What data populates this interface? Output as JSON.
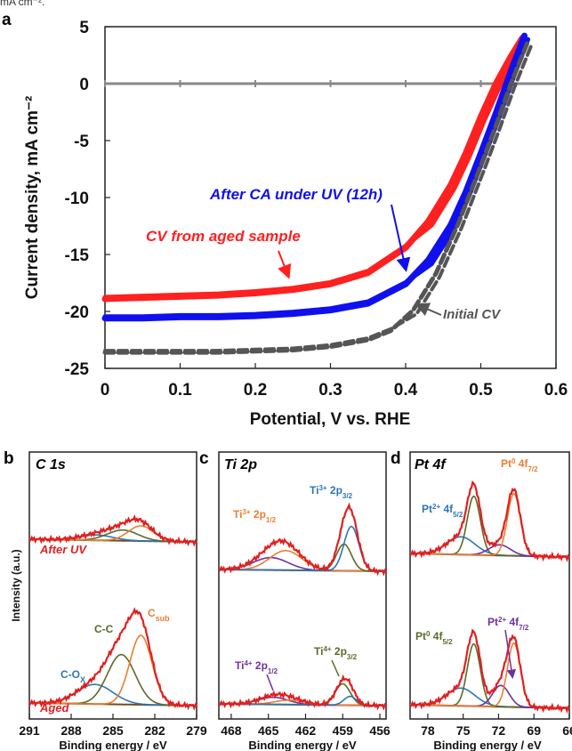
{
  "header_fragment": "mA cm⁻².",
  "chart_data": [
    {
      "type": "line",
      "panel": "a",
      "xlabel": "Potential, V vs. RHE",
      "ylabel": "Current density, mA cm⁻²",
      "xlim": [
        0,
        0.6
      ],
      "ylim": [
        -25,
        5
      ],
      "xticks": [
        "0",
        "0.1",
        "0.2",
        "0.3",
        "0.4",
        "0.5",
        "0.6"
      ],
      "yticks": [
        "5",
        "0",
        "-5",
        "-10",
        "-15",
        "-20",
        "-25"
      ],
      "series": [
        {
          "key": "aged",
          "color": "#ff2020",
          "style": "solid",
          "x": [
            0,
            0.05,
            0.1,
            0.15,
            0.2,
            0.25,
            0.3,
            0.35,
            0.4,
            0.43,
            0.46,
            0.48,
            0.5,
            0.52,
            0.54,
            0.555
          ],
          "y": [
            -18.9,
            -18.8,
            -18.7,
            -18.6,
            -18.4,
            -18.1,
            -17.6,
            -16.6,
            -14.4,
            -12.1,
            -8.9,
            -6.1,
            -2.9,
            0.0,
            2.4,
            4.0
          ]
        },
        {
          "key": "after_ca",
          "color": "#1010ee",
          "style": "solid",
          "x": [
            0,
            0.05,
            0.1,
            0.15,
            0.2,
            0.25,
            0.3,
            0.35,
            0.4,
            0.43,
            0.46,
            0.48,
            0.5,
            0.52,
            0.54,
            0.558
          ],
          "y": [
            -20.6,
            -20.6,
            -20.5,
            -20.5,
            -20.4,
            -20.2,
            -19.9,
            -19.3,
            -17.6,
            -15.5,
            -12.4,
            -9.5,
            -6.1,
            -2.6,
            1.1,
            4.2
          ]
        },
        {
          "key": "initial",
          "color": "#555555",
          "style": "dashed",
          "x": [
            0,
            0.05,
            0.1,
            0.15,
            0.2,
            0.25,
            0.3,
            0.35,
            0.38,
            0.41,
            0.44,
            0.47,
            0.5,
            0.52,
            0.54,
            0.562
          ],
          "y": [
            -23.6,
            -23.6,
            -23.6,
            -23.6,
            -23.5,
            -23.4,
            -23.1,
            -22.5,
            -21.7,
            -19.9,
            -16.7,
            -12.3,
            -7.2,
            -3.7,
            0.0,
            3.6
          ]
        }
      ],
      "annotations": {
        "aged": "CV from aged sample",
        "after_ca": "After CA under UV (12h)",
        "initial": "Initial CV"
      }
    },
    {
      "type": "line",
      "panel": "b",
      "title": "C 1s",
      "xlabel": "Binding energy / eV",
      "ylabel": "Intensity (a.u.)",
      "xlim": [
        291,
        279
      ],
      "xticks": [
        "291",
        "288",
        "285",
        "282",
        "279"
      ],
      "labels": {
        "top": "After UV",
        "bottom": "Aged",
        "csub": "Csub",
        "cc": "C-C",
        "cox": "C-OX"
      }
    },
    {
      "type": "line",
      "panel": "c",
      "title": "Ti 2p",
      "xlabel": "Binding energy / eV",
      "xlim": [
        469,
        455.5
      ],
      "xticks": [
        "468",
        "465",
        "462",
        "459",
        "456"
      ],
      "labels": {
        "ti3_32": "Ti3+ 2p3/2",
        "ti3_12": "Ti3+ 2p1/2",
        "ti4_12": "Ti4+ 2p1/2",
        "ti4_32": "Ti4+ 2p3/2"
      }
    },
    {
      "type": "line",
      "panel": "d",
      "title": "Pt 4f",
      "xlabel": "Binding energy / eV",
      "xlim": [
        79.5,
        66
      ],
      "xticks": [
        "78",
        "75",
        "72",
        "69",
        "66"
      ],
      "labels": {
        "pt0_72": "Pt0 4f7/2",
        "pt2_52": "Pt2+ 4f5/2",
        "pt2_72": "Pt2+ 4f7/2",
        "pt0_52": "Pt0 4f5/2"
      }
    }
  ]
}
